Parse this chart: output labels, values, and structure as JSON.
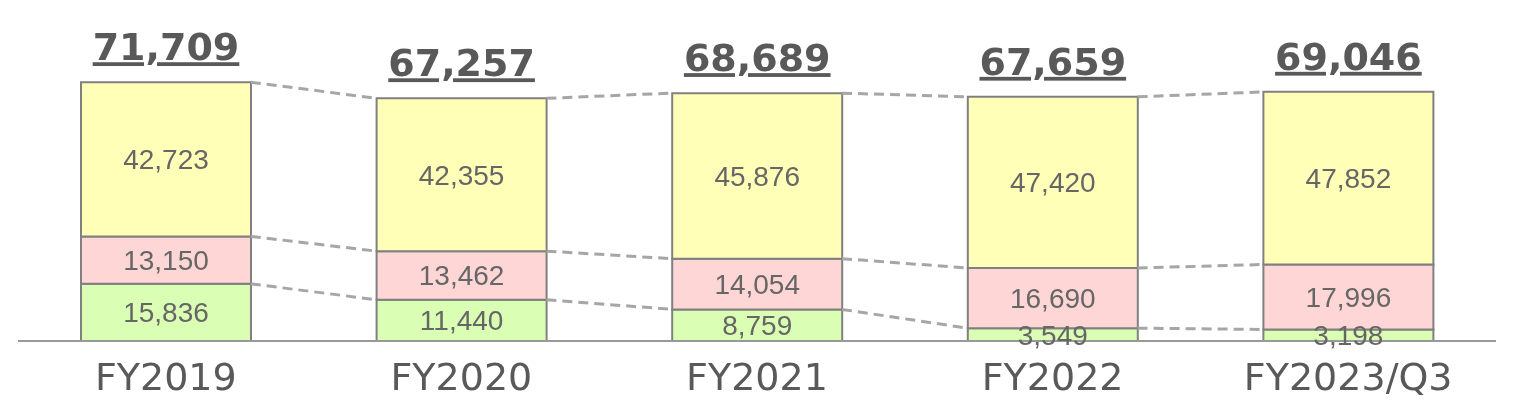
{
  "chart_data": {
    "type": "bar",
    "stacked": true,
    "categories": [
      "FY2019",
      "FY2020",
      "FY2021",
      "FY2022",
      "FY2023/Q3"
    ],
    "series": [
      {
        "color": "#daffb4",
        "values": [
          15836,
          11440,
          8759,
          3549,
          3198
        ],
        "value_labels": [
          "15,836",
          "11,440",
          "8,759",
          "3,549",
          "3,198"
        ]
      },
      {
        "color": "#ffd6d6",
        "values": [
          13150,
          13462,
          14054,
          16690,
          17996
        ],
        "value_labels": [
          "13,150",
          "13,462",
          "14,054",
          "16,690",
          "17,996"
        ]
      },
      {
        "color": "#ffffb8",
        "values": [
          42723,
          42355,
          45876,
          47420,
          47852
        ],
        "value_labels": [
          "42,723",
          "42,355",
          "45,876",
          "47,420",
          "47,852"
        ]
      }
    ],
    "totals": [
      "71,709",
      "67,257",
      "68,689",
      "67,659",
      "69,046"
    ]
  }
}
